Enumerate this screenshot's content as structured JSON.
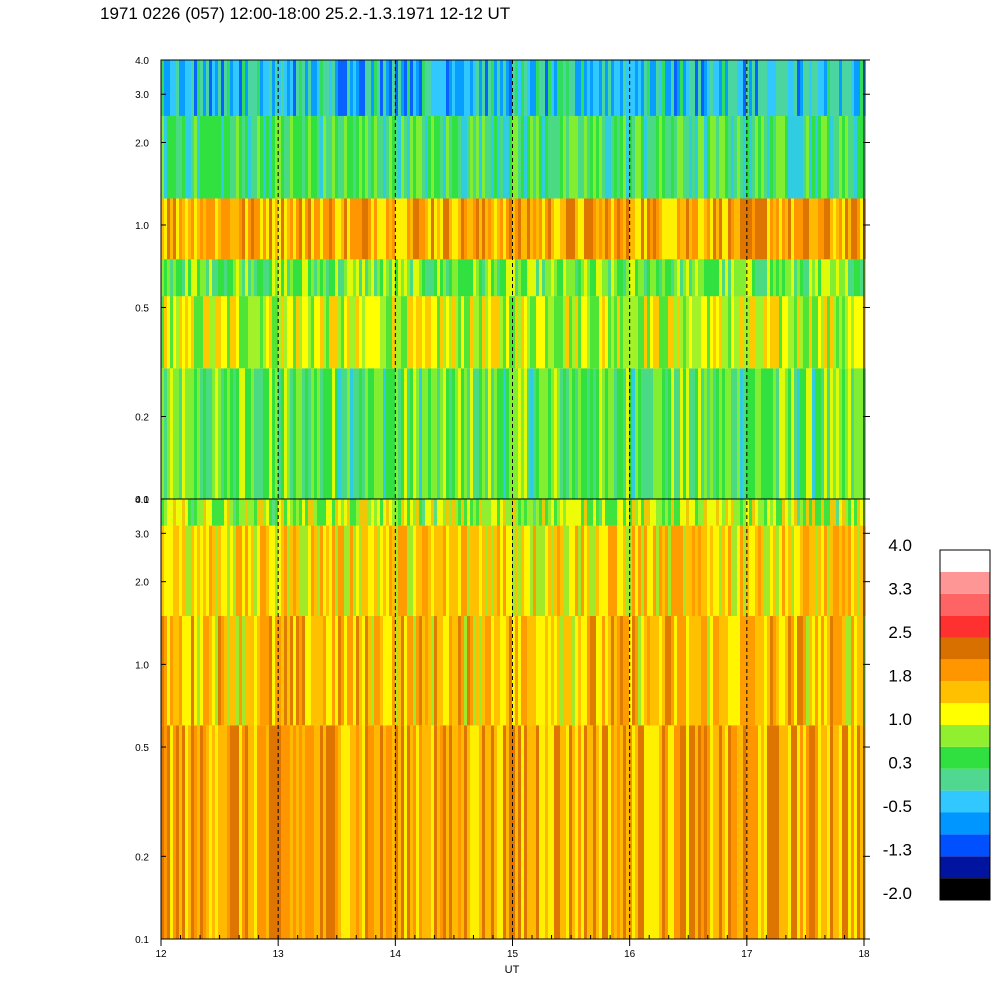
{
  "title": "1971 0226 (057) 12:00-18:00 25.2.-1.3.1971  12-12 UT",
  "chart_data": {
    "type": "heatmap",
    "title": "1971 0226 (057) 12:00-18:00 25.2.-1.3.1971  12-12 UT",
    "xlabel": "UT",
    "x_ticks": [
      "12",
      "13",
      "14",
      "15",
      "16",
      "17",
      "18"
    ],
    "xlim": [
      12,
      18
    ],
    "x_dashed_lines": [
      13,
      14,
      15,
      16,
      17
    ],
    "panels": [
      {
        "name": "top",
        "y_scale": "log",
        "ylim": [
          0.1,
          4.0
        ],
        "y_ticks": [
          "0.1",
          "0.2",
          "0.5",
          "1.0",
          "2.0",
          "3.0",
          "4.0"
        ],
        "bands": [
          {
            "y": [
              0.1,
              0.3
            ],
            "value": 0.5
          },
          {
            "y": [
              0.3,
              0.55
            ],
            "value": 1.0
          },
          {
            "y": [
              0.55,
              0.75
            ],
            "value": 0.6
          },
          {
            "y": [
              0.75,
              1.25
            ],
            "value": 1.8
          },
          {
            "y": [
              1.25,
              2.5
            ],
            "value": 0.3
          },
          {
            "y": [
              2.5,
              4.0
            ],
            "value": -0.3
          }
        ]
      },
      {
        "name": "bottom",
        "y_scale": "log",
        "ylim": [
          0.1,
          4.0
        ],
        "y_ticks": [
          "0.1",
          "0.2",
          "0.5",
          "1.0",
          "2.0",
          "3.0",
          "4.0"
        ],
        "bands": [
          {
            "y": [
              0.1,
              0.6
            ],
            "value": 1.8
          },
          {
            "y": [
              0.6,
              1.5
            ],
            "value": 1.6
          },
          {
            "y": [
              1.5,
              3.2
            ],
            "value": 1.4
          },
          {
            "y": [
              3.2,
              4.0
            ],
            "value": 0.9
          }
        ]
      }
    ],
    "colorbar": {
      "tick_labels": [
        "4.0",
        "3.3",
        "2.5",
        "1.8",
        "1.0",
        "0.3",
        "-0.5",
        "-1.3",
        "-2.0"
      ],
      "range": [
        -2.0,
        4.0
      ],
      "colors": [
        "#000000",
        "#0014a0",
        "#0050ff",
        "#0096ff",
        "#30c8ff",
        "#50d890",
        "#30e040",
        "#90f030",
        "#ffff00",
        "#ffc000",
        "#ff9600",
        "#d87000",
        "#ff3030",
        "#ff6464",
        "#ff9696",
        "#ffffff"
      ]
    }
  }
}
